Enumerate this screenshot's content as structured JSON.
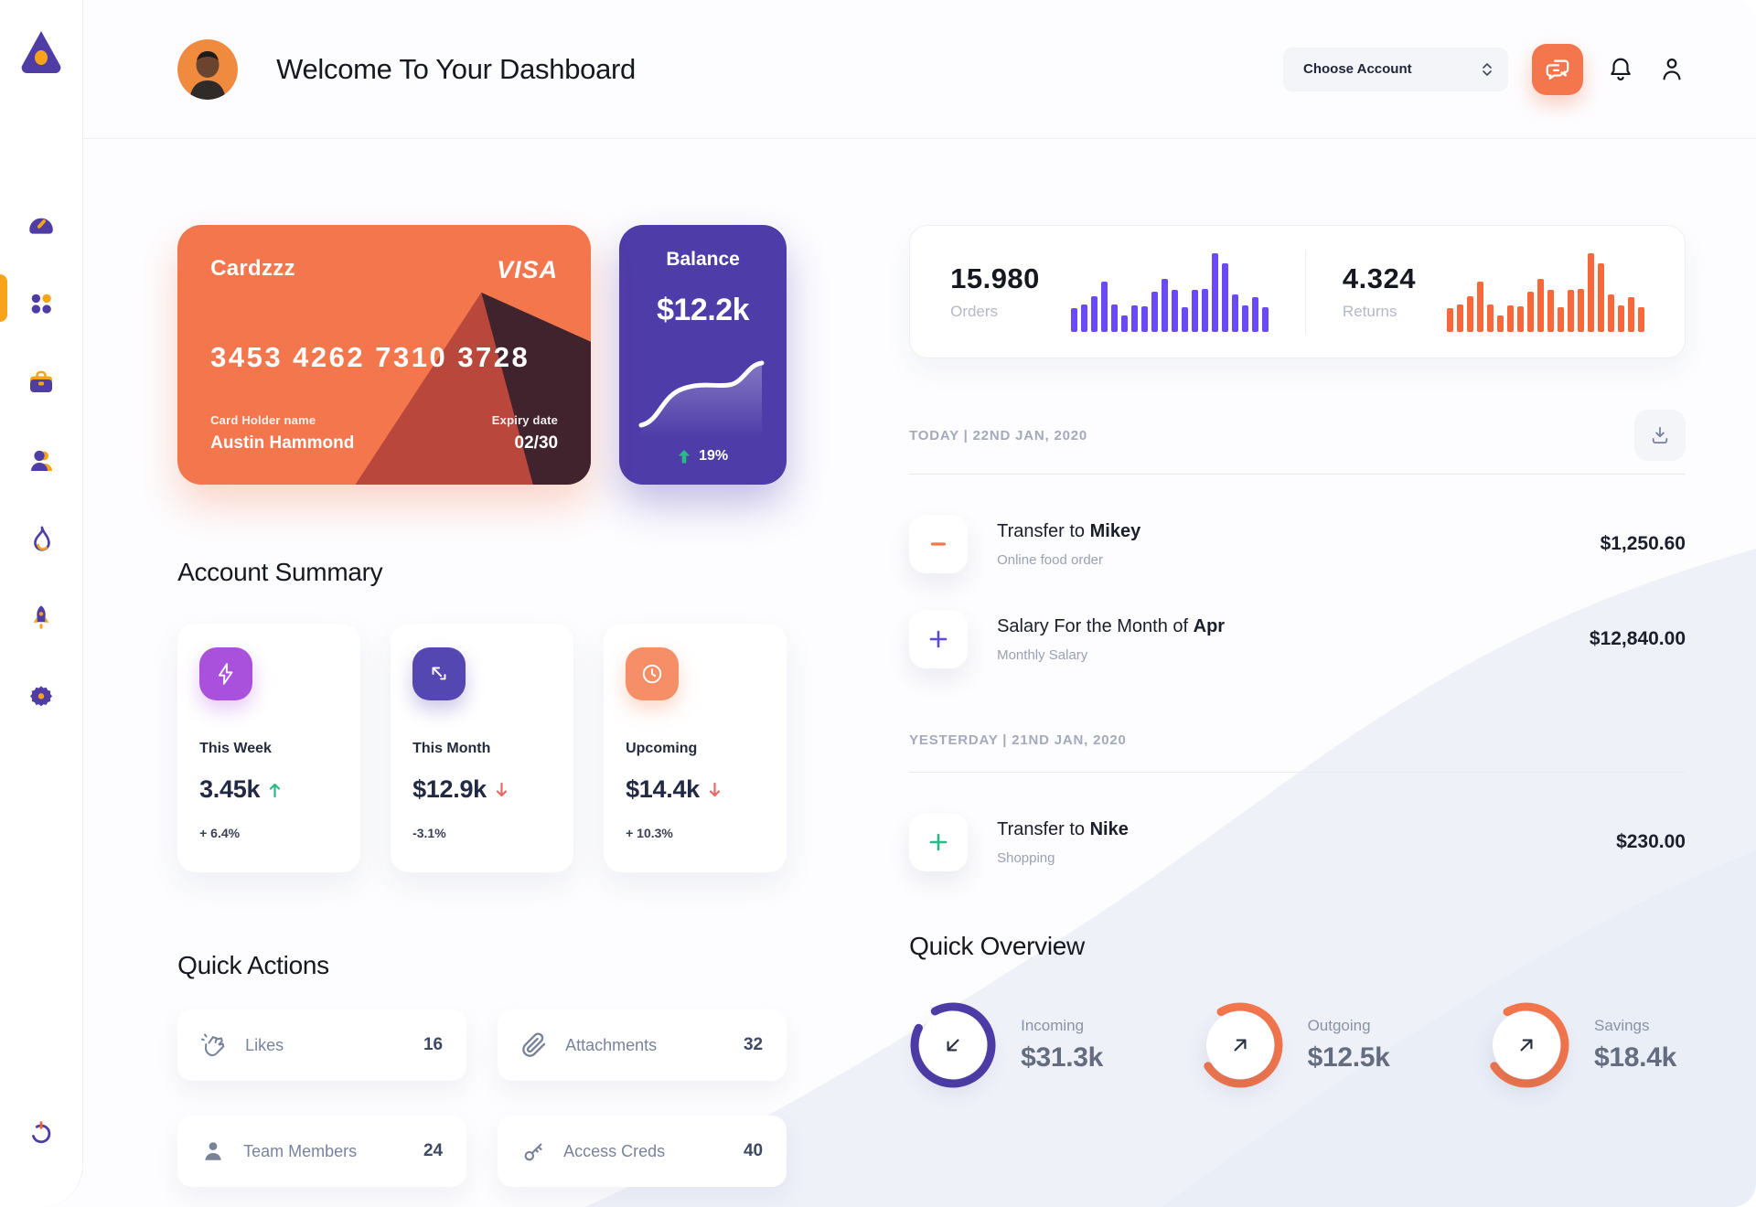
{
  "header": {
    "title": "Welcome To Your Dashboard",
    "account_select_label": "Choose Account"
  },
  "sidebar": {
    "items": [
      "dashboard-gauge",
      "apps-grid",
      "briefcase",
      "team",
      "flame",
      "rocket",
      "settings-gear"
    ],
    "logout": "power"
  },
  "bank_card": {
    "name": "Cardzzz",
    "brand": "VISA",
    "number": "3453 4262 7310 3728",
    "holder_label": "Card Holder name",
    "holder": "Austin Hammond",
    "expiry_label": "Expiry date",
    "expiry": "02/30"
  },
  "balance": {
    "title": "Balance",
    "value": "$12.2k",
    "change": "19%"
  },
  "account_summary": {
    "title": "Account Summary",
    "cards": [
      {
        "label": "This Week",
        "value": "3.45k",
        "direction": "up",
        "delta": "+ 6.4%"
      },
      {
        "label": "This Month",
        "value": "$12.9k",
        "direction": "down",
        "delta": "-3.1%"
      },
      {
        "label": "Upcoming",
        "value": "$14.4k",
        "direction": "down",
        "delta": "+ 10.3%"
      }
    ]
  },
  "quick_actions": {
    "title": "Quick Actions",
    "items": [
      {
        "icon": "clap-icon",
        "label": "Likes",
        "value": "16"
      },
      {
        "icon": "paperclip-icon",
        "label": "Attachments",
        "value": "32"
      },
      {
        "icon": "person-icon",
        "label": "Team Members",
        "value": "24"
      },
      {
        "icon": "key-icon",
        "label": "Access Creds",
        "value": "40"
      }
    ]
  },
  "stats": {
    "orders": {
      "value": "15.980",
      "label": "Orders"
    },
    "returns": {
      "value": "4.324",
      "label": "Returns"
    }
  },
  "chart_data": [
    {
      "type": "bar",
      "name": "orders-mini-bars",
      "color": "#6A4AF6",
      "values": [
        30,
        34,
        44,
        62,
        34,
        21,
        33,
        32,
        50,
        66,
        52,
        31,
        52,
        53,
        98,
        85,
        47,
        33,
        43,
        31
      ]
    },
    {
      "type": "bar",
      "name": "returns-mini-bars",
      "color": "#F7683A",
      "values": [
        30,
        34,
        44,
        62,
        34,
        21,
        33,
        32,
        50,
        66,
        52,
        31,
        52,
        53,
        98,
        85,
        47,
        33,
        43,
        31
      ]
    },
    {
      "type": "line",
      "name": "balance-trend",
      "color": "#FFFFFF",
      "points": [
        8,
        14,
        30,
        46,
        54,
        57,
        58,
        57,
        58,
        61,
        74,
        82,
        80
      ]
    }
  ],
  "transactions": {
    "today_label": "TODAY | 22ND JAN, 2020",
    "yesterday_label": "YESTERDAY | 21ND JAN, 2020",
    "items": [
      {
        "title_prefix": "Transfer to ",
        "title_bold": "Mikey",
        "subtitle": "Online food order",
        "amount": "$1,250.60",
        "sign": "minus",
        "sign_color": "#F4764C"
      },
      {
        "title_prefix": "Salary For the Month of ",
        "title_bold": "Apr",
        "subtitle": "Monthly Salary",
        "amount": "$12,840.00",
        "sign": "plus",
        "sign_color": "#5B4BD6"
      },
      {
        "title_prefix": "Transfer to ",
        "title_bold": "Nike",
        "subtitle": "Shopping",
        "amount": "$230.00",
        "sign": "plus",
        "sign_color": "#2BB786"
      }
    ]
  },
  "quick_overview": {
    "title": "Quick Overview",
    "items": [
      {
        "label": "Incoming",
        "value": "$31.3k",
        "ring_color": "#4E3CA8",
        "percent": 90,
        "start_angle": -118,
        "arrow": "down-left"
      },
      {
        "label": "Outgoing",
        "value": "$12.5k",
        "ring_color": "#F4764C",
        "percent": 74,
        "start_angle": -120,
        "arrow": "up-right"
      },
      {
        "label": "Savings",
        "value": "$18.4k",
        "ring_color": "#F4764C",
        "percent": 74,
        "start_angle": -120,
        "arrow": "up-right"
      }
    ]
  },
  "colors": {
    "accent_orange": "#F4764C",
    "accent_purple": "#4E3CA8",
    "bars_purple": "#6A4AF6",
    "bars_orange": "#F7683A",
    "green": "#2BB786",
    "red": "#E86868",
    "active_pill": "#F9A21B"
  }
}
